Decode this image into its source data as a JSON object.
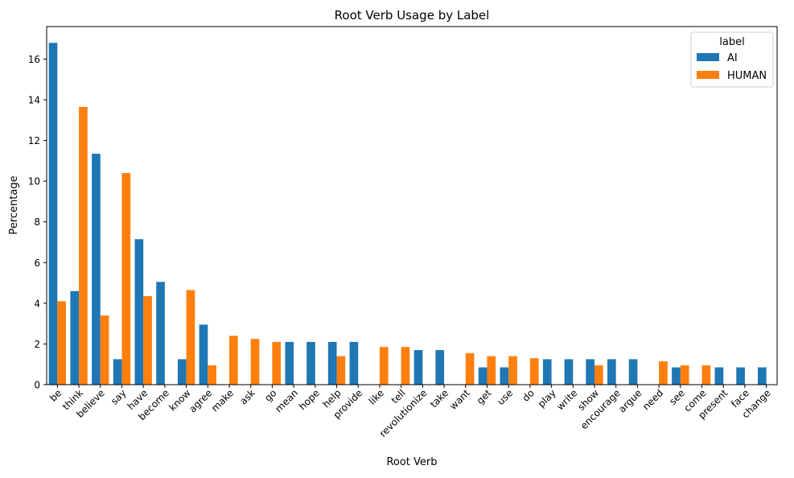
{
  "chart_data": {
    "type": "bar",
    "title": "Root Verb Usage by Label",
    "xlabel": "Root Verb",
    "ylabel": "Percentage",
    "ylim": [
      0,
      17.6
    ],
    "yticks": [
      0,
      2,
      4,
      6,
      8,
      10,
      12,
      14,
      16
    ],
    "grid": false,
    "legend": {
      "title": "label",
      "position": "top-right"
    },
    "categories": [
      "be",
      "think",
      "believe",
      "say",
      "have",
      "become",
      "know",
      "agree",
      "make",
      "ask",
      "go",
      "mean",
      "hope",
      "help",
      "provide",
      "like",
      "tell",
      "revolutionize",
      "take",
      "want",
      "get",
      "use",
      "do",
      "play",
      "write",
      "show",
      "encourage",
      "argue",
      "need",
      "see",
      "come",
      "present",
      "face",
      "change"
    ],
    "series": [
      {
        "name": "AI",
        "color": "#1f77b4",
        "values": [
          16.8,
          4.6,
          11.35,
          1.25,
          7.15,
          5.05,
          1.25,
          2.95,
          0,
          0,
          0,
          2.1,
          2.1,
          2.1,
          2.1,
          0,
          0,
          1.7,
          1.7,
          0,
          0.85,
          0.85,
          0,
          1.25,
          1.25,
          1.25,
          1.25,
          1.25,
          0,
          0.85,
          0,
          0.85,
          0.85,
          0.85
        ]
      },
      {
        "name": "HUMAN",
        "color": "#ff7f0e",
        "values": [
          4.1,
          13.65,
          3.4,
          10.4,
          4.35,
          0,
          4.65,
          0.95,
          2.4,
          2.25,
          2.1,
          0,
          0,
          1.4,
          0,
          1.85,
          1.85,
          0,
          0,
          1.55,
          1.4,
          1.4,
          1.3,
          0,
          0,
          0.95,
          0,
          0,
          1.15,
          0.95,
          0.95,
          0,
          0,
          0
        ]
      }
    ]
  }
}
